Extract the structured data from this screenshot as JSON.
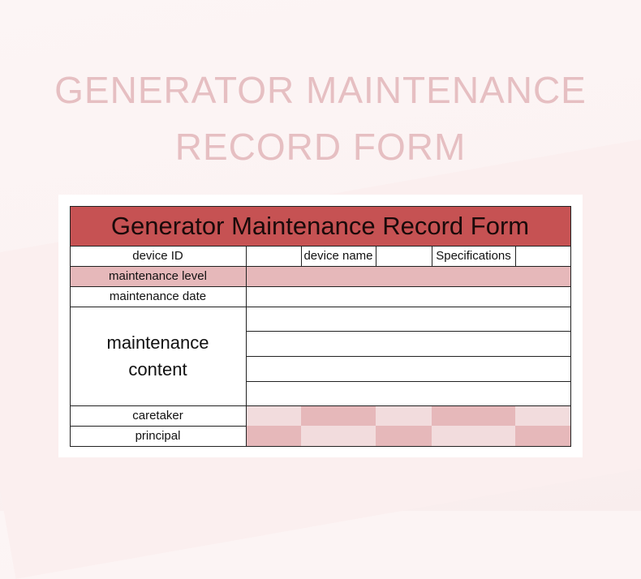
{
  "page_heading": {
    "line1": "GENERATOR MAINTENANCE",
    "line2": "RECORD FORM"
  },
  "form": {
    "title": "Generator Maintenance Record Form",
    "labels": {
      "device_id": "device ID",
      "device_name": "device name",
      "specifications": "Specifications",
      "maintenance_level": "maintenance level",
      "maintenance_date": "maintenance date",
      "maintenance_content_1": "maintenance",
      "maintenance_content_2": "content",
      "caretaker": "caretaker",
      "principal": "principal"
    }
  },
  "colors": {
    "title_bg": "#c65253",
    "pink": "#e6b8ba",
    "light_pink": "#f2dcdd",
    "heading": "#e6bfc2"
  }
}
